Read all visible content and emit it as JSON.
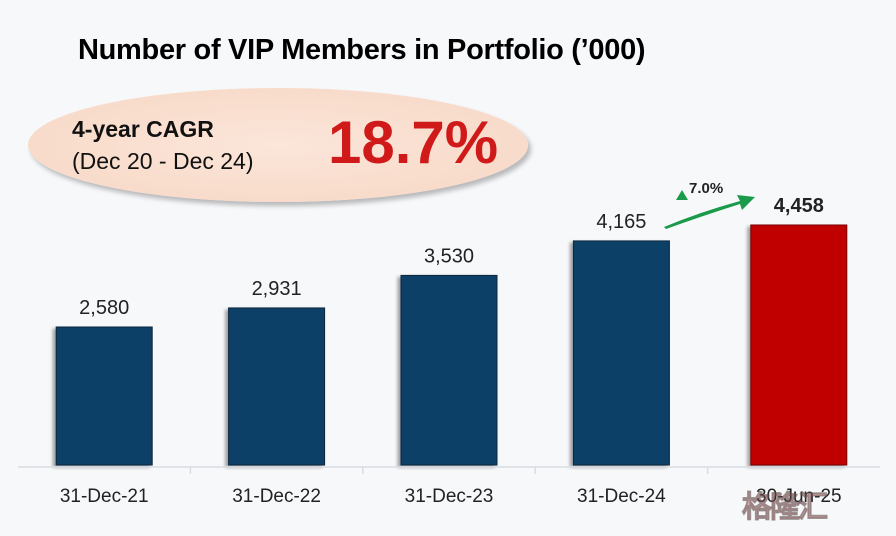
{
  "chart_data": {
    "type": "bar",
    "title": "Number of VIP Members in Portfolio  (’000)",
    "categories": [
      "31-Dec-21",
      "31-Dec-22",
      "31-Dec-23",
      "31-Dec-24",
      "30-Jun-25"
    ],
    "values": [
      2580,
      2931,
      3530,
      4165,
      4458
    ],
    "data_labels": [
      "2,580",
      "2,931",
      "3,530",
      "4,165",
      "4,458"
    ],
    "bar_colors": [
      "#0d3f66",
      "#0d3f66",
      "#0d3f66",
      "#0d3f66",
      "#c00000"
    ],
    "xlabel": "",
    "ylabel": "",
    "ylim": [
      0,
      4800
    ],
    "grid": false,
    "annotations": {
      "cagr_label": "4-year CAGR",
      "cagr_range": "(Dec 20 - Dec 24)",
      "cagr_value": "18.7%",
      "growth_label": "7.0%",
      "growth_arrow_color": "#1a9a4a"
    }
  },
  "watermark": "格隆汇"
}
